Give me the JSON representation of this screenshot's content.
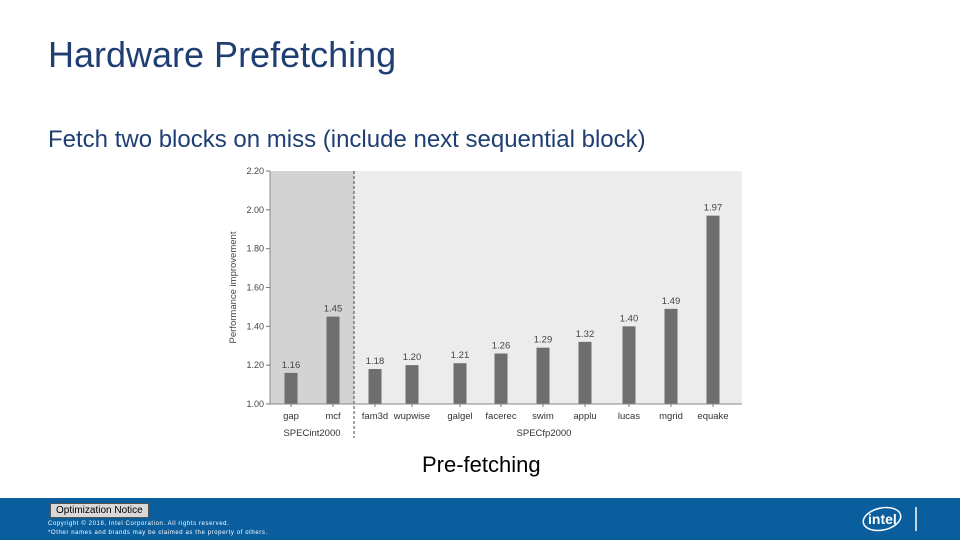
{
  "slide": {
    "title": "Hardware Prefetching",
    "subtitle": "Fetch two blocks on miss (include next sequential block)",
    "caption": "Pre-fetching"
  },
  "footer": {
    "notice": "Optimization Notice",
    "copyright_line1": "Copyright © 2018, Intel Corporation. All rights reserved.",
    "copyright_line2": "*Other names and brands may be claimed as the property of others.",
    "logo_text": "intel",
    "colors": {
      "bar": "#0a5e9e",
      "logo": "#ffffff"
    }
  },
  "chart_data": {
    "type": "bar",
    "ylabel": "Performance improvement",
    "ylim": [
      1.0,
      2.2
    ],
    "yticks": [
      "1.00",
      "1.20",
      "1.40",
      "1.60",
      "1.80",
      "2.00",
      "2.20"
    ],
    "categories": [
      "gap",
      "mcf",
      "fam3d",
      "wupwise",
      "galgel",
      "facerec",
      "swim",
      "applu",
      "lucas",
      "mgrid",
      "equake"
    ],
    "values": [
      1.16,
      1.45,
      1.18,
      1.2,
      1.21,
      1.26,
      1.29,
      1.32,
      1.4,
      1.49,
      1.97
    ],
    "value_labels": [
      "1.16",
      "1.45",
      "1.18",
      "1.20",
      "1.21",
      "1.26",
      "1.29",
      "1.32",
      "1.40",
      "1.49",
      "1.97"
    ],
    "groups": [
      {
        "label": "SPECint2000",
        "count": 2
      },
      {
        "label": "SPECfp2000",
        "count": 9
      }
    ],
    "colors": {
      "bar": "#6e6e6e",
      "int_background": "#d3d3d3",
      "fp_background": "#ececec"
    }
  }
}
